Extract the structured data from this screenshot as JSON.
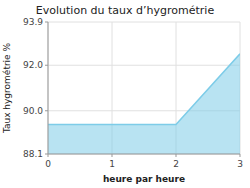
{
  "chart_data": {
    "type": "area",
    "title": "Evolution du taux d’hygrométrie",
    "xlabel": "heure par heure",
    "ylabel": "Taux hygrométrie %",
    "x": [
      0,
      2,
      3
    ],
    "values": [
      89.4,
      89.4,
      92.5
    ],
    "color": "#7dcce8",
    "xlim": [
      0,
      3
    ],
    "ylim": [
      88.1,
      93.9
    ],
    "xticks": [
      0,
      1,
      2,
      3
    ],
    "yticks": [
      88.1,
      {
        "value": 90,
        "label": "90.0"
      },
      {
        "value": 92,
        "label": "92.0"
      },
      93.9
    ],
    "grid": true
  }
}
